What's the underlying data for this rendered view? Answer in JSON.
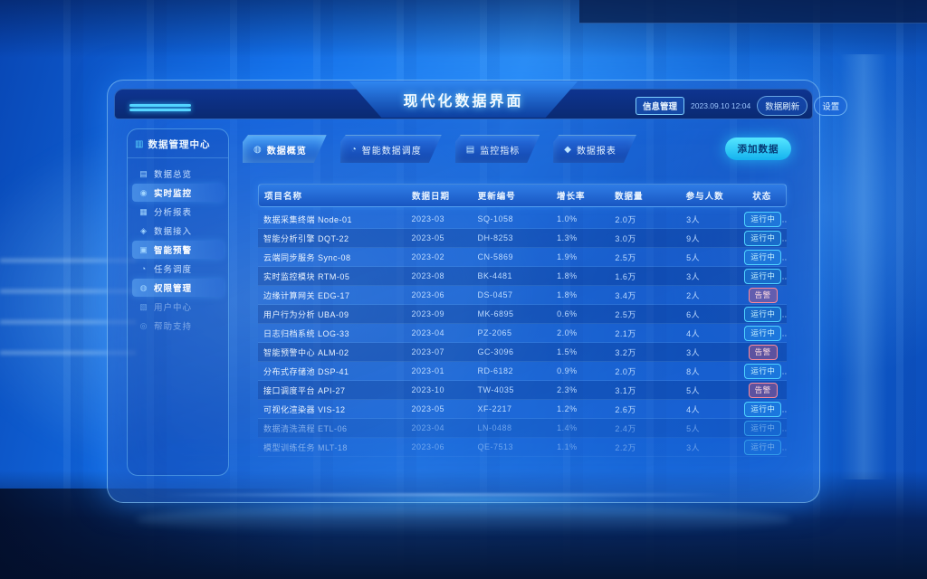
{
  "app": {
    "title": "现代化数据界面"
  },
  "header": {
    "badge": "信息管理",
    "datetime": "2023.09.10 12:04",
    "refresh_button": "数据刷新",
    "settings_button": "设置"
  },
  "sidebar": {
    "title": "数据管理中心",
    "title_icon": "▥",
    "items": [
      {
        "icon_glyph": "▤",
        "label": "数据总览",
        "active": false
      },
      {
        "icon_glyph": "◉",
        "label": "实时监控",
        "active": true
      },
      {
        "icon_glyph": "▦",
        "label": "分析报表",
        "active": false
      },
      {
        "icon_glyph": "◈",
        "label": "数据接入",
        "active": false
      },
      {
        "icon_glyph": "▣",
        "label": "智能预警",
        "active": true
      },
      {
        "icon_glyph": "◔",
        "label": "任务调度",
        "active": false
      },
      {
        "icon_glyph": "◍",
        "label": "权限管理",
        "active": true
      },
      {
        "icon_glyph": "▧",
        "label": "用户中心",
        "active": false,
        "faded": true
      },
      {
        "icon_glyph": "◎",
        "label": "帮助支持",
        "active": false,
        "faded": true
      }
    ]
  },
  "tabs": [
    {
      "icon_glyph": "◍",
      "label": "数据概览",
      "active": true
    },
    {
      "icon_glyph": "◔",
      "label": "智能数据调度",
      "active": false
    },
    {
      "icon_glyph": "▤",
      "label": "监控指标",
      "active": false
    },
    {
      "icon_glyph": "◆",
      "label": "数据报表",
      "active": false
    }
  ],
  "add_button": "添加数据",
  "table": {
    "columns": [
      "项目名称",
      "数据日期",
      "更新编号",
      "增长率",
      "数据量",
      "参与人数",
      "状态"
    ],
    "rows": [
      {
        "name": "数据采集终端 Node-01",
        "date": "2023-03",
        "code": "SQ-1058",
        "rate": "1.0%",
        "volume": "2.0万",
        "team": "3人",
        "status": "运行中",
        "status_type": "ok"
      },
      {
        "name": "智能分析引擎 DQT-22",
        "date": "2023-05",
        "code": "DH-8253",
        "rate": "1.3%",
        "volume": "3.0万",
        "team": "9人",
        "status": "运行中",
        "status_type": "ok"
      },
      {
        "name": "云端同步服务 Sync-08",
        "date": "2023-02",
        "code": "CN-5869",
        "rate": "1.9%",
        "volume": "2.5万",
        "team": "5人",
        "status": "运行中",
        "status_type": "ok"
      },
      {
        "name": "实时监控模块 RTM-05",
        "date": "2023-08",
        "code": "BK-4481",
        "rate": "1.8%",
        "volume": "1.6万",
        "team": "3人",
        "status": "运行中",
        "status_type": "ok"
      },
      {
        "name": "边缘计算网关 EDG-17",
        "date": "2023-06",
        "code": "DS-0457",
        "rate": "1.8%",
        "volume": "3.4万",
        "team": "2人",
        "status": "告警",
        "status_type": "alert"
      },
      {
        "name": "用户行为分析 UBA-09",
        "date": "2023-09",
        "code": "MK-6895",
        "rate": "0.6%",
        "volume": "2.5万",
        "team": "6人",
        "status": "运行中",
        "status_type": "ok"
      },
      {
        "name": "日志归档系统 LOG-33",
        "date": "2023-04",
        "code": "PZ-2065",
        "rate": "2.0%",
        "volume": "2.1万",
        "team": "4人",
        "status": "运行中",
        "status_type": "ok"
      },
      {
        "name": "智能预警中心 ALM-02",
        "date": "2023-07",
        "code": "GC-3096",
        "rate": "1.5%",
        "volume": "3.2万",
        "team": "3人",
        "status": "告警",
        "status_type": "alert"
      },
      {
        "name": "分布式存储池 DSP-41",
        "date": "2023-01",
        "code": "RD-6182",
        "rate": "0.9%",
        "volume": "2.0万",
        "team": "8人",
        "status": "运行中",
        "status_type": "ok"
      },
      {
        "name": "接口调度平台 API-27",
        "date": "2023-10",
        "code": "TW-4035",
        "rate": "2.3%",
        "volume": "3.1万",
        "team": "5人",
        "status": "告警",
        "status_type": "alert"
      },
      {
        "name": "可视化渲染器 VIS-12",
        "date": "2023-05",
        "code": "XF-2217",
        "rate": "1.2%",
        "volume": "2.6万",
        "team": "4人",
        "status": "运行中",
        "status_type": "ok"
      },
      {
        "name": "数据清洗流程 ETL-06",
        "date": "2023-04",
        "code": "LN-0488",
        "rate": "1.4%",
        "volume": "2.4万",
        "team": "5人",
        "status": "运行中",
        "status_type": "ok",
        "faded": true
      },
      {
        "name": "模型训练任务 MLT-18",
        "date": "2023-06",
        "code": "QE-7513",
        "rate": "1.1%",
        "volume": "2.2万",
        "team": "3人",
        "status": "运行中",
        "status_type": "ok",
        "faded": true
      }
    ]
  },
  "colors": {
    "accent_cyan": "#2ad0ff",
    "panel_border": "#a0e1ff",
    "alert_red": "#ff8a99",
    "header_navy": "#0a2a72",
    "scene_blue": "#1470e8"
  }
}
